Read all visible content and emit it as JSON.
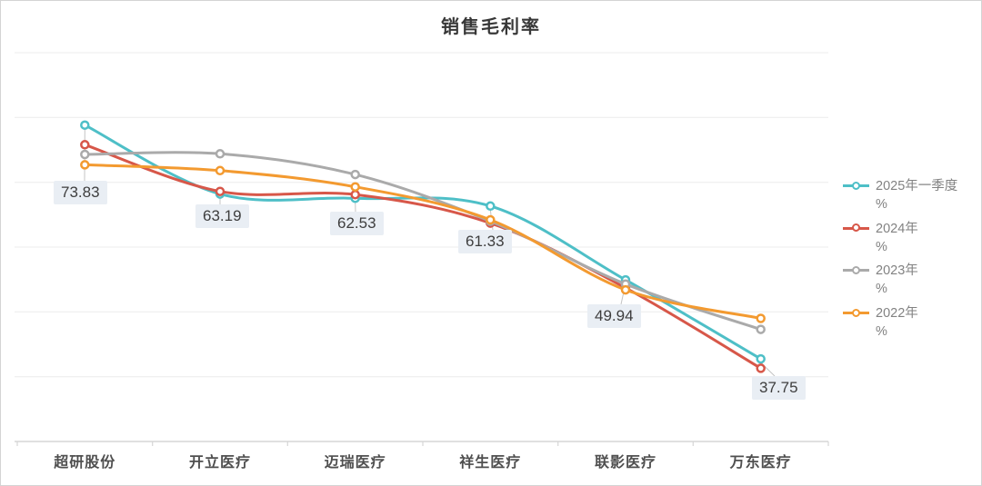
{
  "chart_data": {
    "type": "line",
    "title": "销售毛利率",
    "categories": [
      "超研股份",
      "开立医疗",
      "迈瑞医疗",
      "祥生医疗",
      "联影医疗",
      "万东医疗"
    ],
    "series": [
      {
        "name": "2025年一季度",
        "unit": "%",
        "color": "#4EBFC7",
        "values": [
          73.83,
          63.19,
          62.53,
          61.33,
          49.94,
          37.75
        ]
      },
      {
        "name": "2024年",
        "unit": "%",
        "color": "#D75749",
        "values": [
          70.8,
          63.6,
          63.1,
          58.7,
          48.7,
          36.3
        ]
      },
      {
        "name": "2023年",
        "unit": "%",
        "color": "#AAAAAA",
        "values": [
          69.3,
          69.4,
          66.2,
          59.0,
          49.3,
          42.3
        ]
      },
      {
        "name": "2022年",
        "unit": "%",
        "color": "#F39A30",
        "values": [
          67.7,
          66.8,
          64.3,
          59.2,
          48.4,
          44.0
        ]
      }
    ],
    "point_labels": [
      "73.83",
      "63.19",
      "62.53",
      "61.33",
      "49.94",
      "37.75"
    ],
    "labeled_series": "2025年一季度",
    "ylim": [
      25,
      85
    ],
    "grid_step": 10,
    "y_axis_labels_visible": false,
    "grid": "horizontal-only",
    "legend_position": "right",
    "smooth": true,
    "colors": {
      "grid": "#ECECEC",
      "axis": "#D6D6D6",
      "callout": "#C4C4C4",
      "label_bg": "#E9EEF4",
      "label_text": "#3E3E3E"
    }
  }
}
